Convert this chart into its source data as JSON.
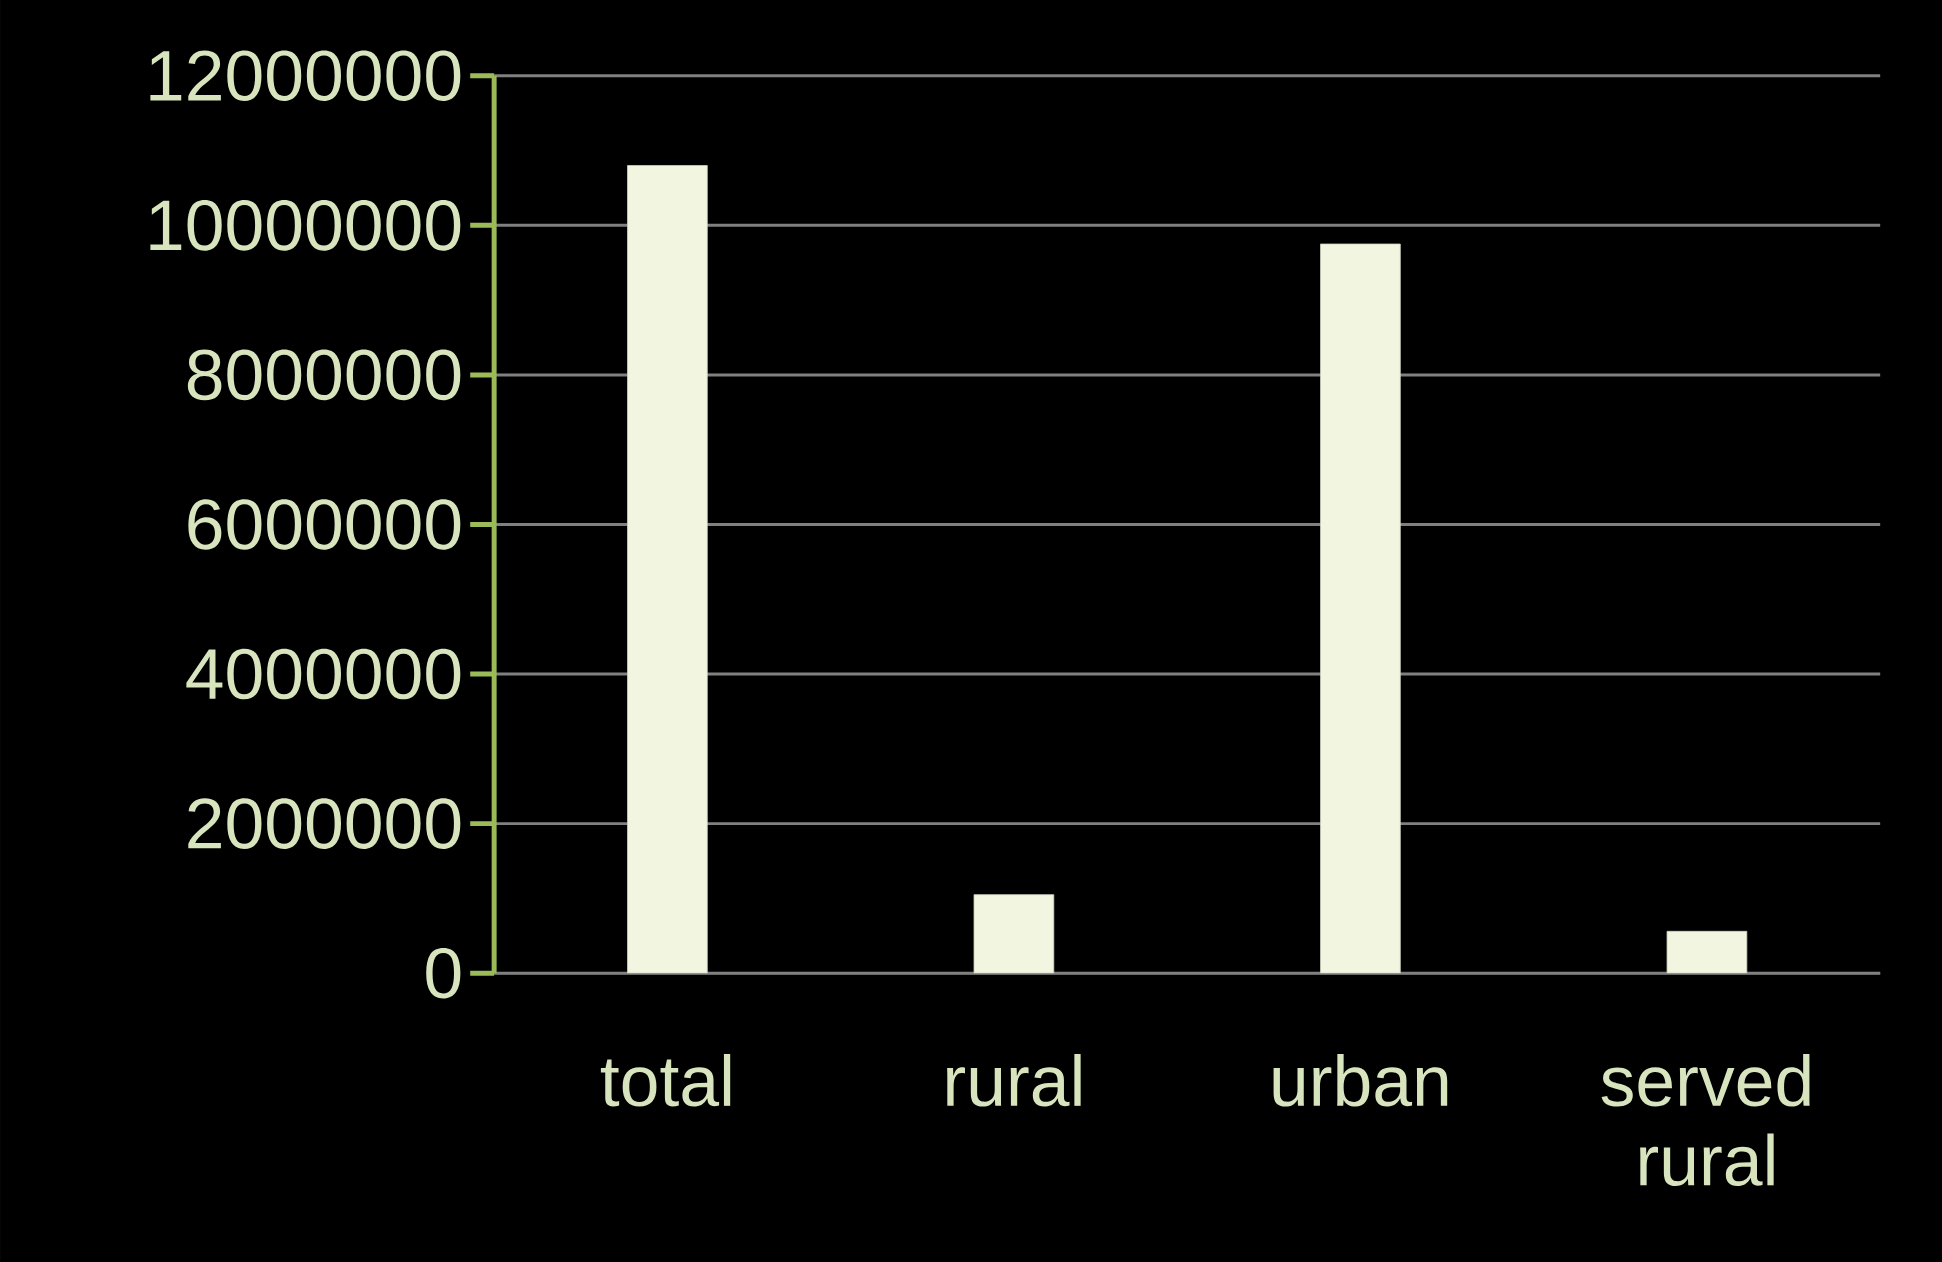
{
  "chart_data": {
    "type": "bar",
    "categories": [
      "total",
      "rural",
      "urban",
      "served rural"
    ],
    "values": [
      10800000,
      1050000,
      9750000,
      560000
    ],
    "color": "#f2f5df",
    "ylim": [
      0,
      12000000
    ],
    "yticks": [
      0,
      2000000,
      4000000,
      6000000,
      8000000,
      10000000,
      12000000
    ],
    "grid": "y"
  }
}
